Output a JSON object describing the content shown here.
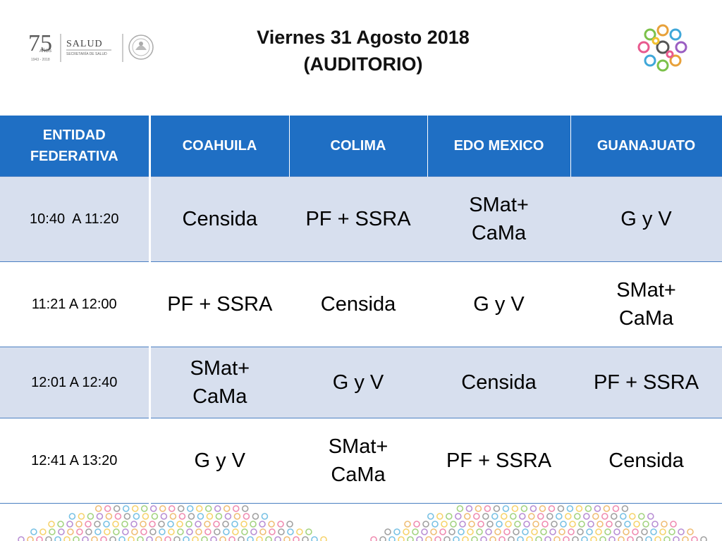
{
  "header": {
    "title_line1": "Viernes 31 Agosto 2018",
    "title_line2": "(AUDITORIO)",
    "logo_left": {
      "number": "75",
      "small": "AÑOS",
      "years": "1943 - 2018",
      "brand": "SALUD",
      "subtitle": "SECRETARÍA DE SALUD"
    }
  },
  "table": {
    "columns": [
      "ENTIDAD\nFEDERATIVA",
      "COAHUILA",
      "COLIMA",
      "EDO MEXICO",
      "GUANAJUATO"
    ],
    "rows": [
      {
        "time": "10:40  A 11:20",
        "cells": [
          "Censida",
          "PF + SSRA",
          "SMat+\nCaMa",
          "G y V"
        ]
      },
      {
        "time": "11:21 A 12:00",
        "cells": [
          "PF + SSRA",
          "Censida",
          "G y V",
          "SMat+\nCaMa"
        ]
      },
      {
        "time": "12:01 A 12:40",
        "cells": [
          "SMat+\nCaMa",
          "G y V",
          "Censida",
          "PF + SSRA"
        ]
      },
      {
        "time": "12:41 A 13:20",
        "cells": [
          "G y V",
          "SMat+\nCaMa",
          "PF + SSRA",
          "Censida"
        ]
      }
    ]
  },
  "colors": {
    "header_blue": "#1f6fc4",
    "band_light": "#d7dfee",
    "border_blue": "#4a7fc2"
  },
  "icons": {
    "logo_left": "salud-75-anos-logo",
    "seal": "mexico-coat-of-arms-icon",
    "logo_right": "colorful-rings-logo",
    "footer": "colorful-dots-pattern"
  }
}
